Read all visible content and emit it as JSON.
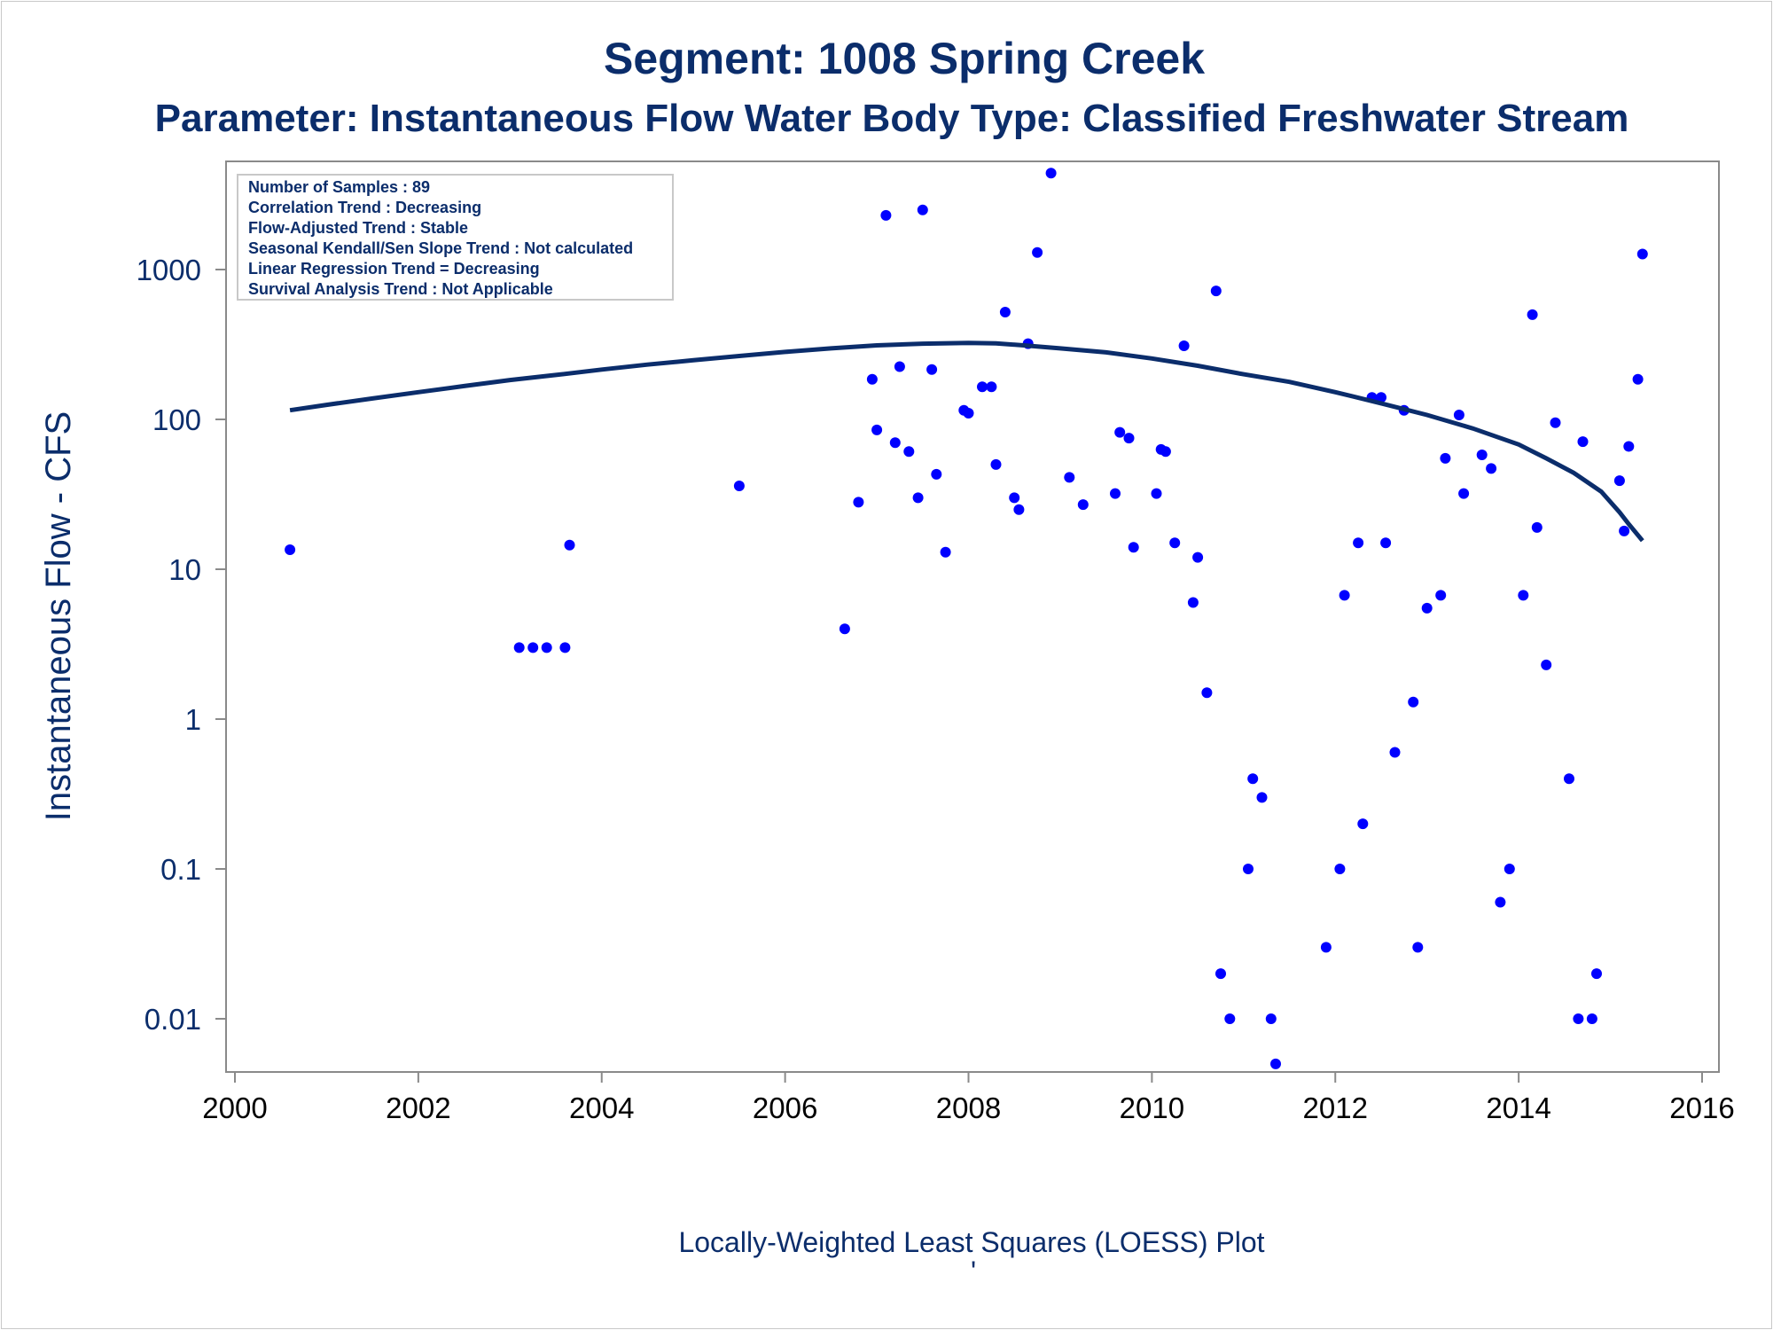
{
  "chart_data": {
    "type": "scatter",
    "title": "Segment: 1008  Spring Creek",
    "subtitle": "Parameter: Instantaneous Flow   Water Body Type: Classified Freshwater Stream",
    "xlabel": "",
    "ylabel": "Instantaneous Flow - CFS",
    "footer": "Locally-Weighted Least Squares (LOESS) Plot",
    "footer_mark": "'",
    "y_scale": "log",
    "xlim": [
      2000,
      2016
    ],
    "ylim": [
      0.005,
      5000
    ],
    "x_ticks": [
      "2000",
      "2002",
      "2004",
      "2006",
      "2008",
      "2010",
      "2012",
      "2014",
      "2016"
    ],
    "y_ticks": [
      "0.01",
      "0.1",
      "1",
      "10",
      "100",
      "1000"
    ],
    "grid": false,
    "annotation_box": [
      "Number of Samples : 89",
      "Correlation Trend : Decreasing",
      "Flow-Adjusted Trend : Stable",
      "Seasonal Kendall/Sen Slope Trend : Not calculated",
      "Linear Regression Trend = Decreasing",
      "Survival Analysis Trend : Not Applicable"
    ],
    "point_color": "#0000ff",
    "line_color": "#0b2d6b",
    "points": [
      [
        2000.6,
        13.5
      ],
      [
        2003.1,
        3
      ],
      [
        2003.25,
        3
      ],
      [
        2003.4,
        3
      ],
      [
        2003.6,
        3
      ],
      [
        2003.65,
        14.5
      ],
      [
        2005.5,
        36
      ],
      [
        2006.65,
        4
      ],
      [
        2006.8,
        28
      ],
      [
        2006.95,
        185
      ],
      [
        2007.0,
        85
      ],
      [
        2007.1,
        2300
      ],
      [
        2007.2,
        70
      ],
      [
        2007.25,
        225
      ],
      [
        2007.35,
        61
      ],
      [
        2007.45,
        30
      ],
      [
        2007.5,
        2500
      ],
      [
        2007.6,
        215
      ],
      [
        2007.65,
        43
      ],
      [
        2007.75,
        13
      ],
      [
        2007.95,
        115
      ],
      [
        2008.0,
        110
      ],
      [
        2008.15,
        165
      ],
      [
        2008.25,
        165
      ],
      [
        2008.3,
        50
      ],
      [
        2008.4,
        520
      ],
      [
        2008.5,
        30
      ],
      [
        2008.55,
        25
      ],
      [
        2008.65,
        320
      ],
      [
        2008.75,
        1300
      ],
      [
        2008.9,
        4400
      ],
      [
        2009.1,
        41
      ],
      [
        2009.25,
        27
      ],
      [
        2009.6,
        32
      ],
      [
        2009.65,
        82
      ],
      [
        2009.75,
        75
      ],
      [
        2009.8,
        14
      ],
      [
        2010.05,
        32
      ],
      [
        2010.1,
        63
      ],
      [
        2010.15,
        61
      ],
      [
        2010.25,
        15
      ],
      [
        2010.35,
        310
      ],
      [
        2010.45,
        6
      ],
      [
        2010.5,
        12
      ],
      [
        2010.6,
        1.5
      ],
      [
        2010.7,
        720
      ],
      [
        2010.75,
        0.02
      ],
      [
        2010.85,
        0.01
      ],
      [
        2011.05,
        0.1
      ],
      [
        2011.1,
        0.4
      ],
      [
        2011.2,
        0.3
      ],
      [
        2011.3,
        0.01
      ],
      [
        2011.35,
        0.005
      ],
      [
        2011.9,
        0.03
      ],
      [
        2012.05,
        0.1
      ],
      [
        2012.1,
        6.7
      ],
      [
        2012.25,
        15
      ],
      [
        2012.3,
        0.2
      ],
      [
        2012.4,
        140
      ],
      [
        2012.5,
        140
      ],
      [
        2012.55,
        15
      ],
      [
        2012.65,
        0.6
      ],
      [
        2012.75,
        115
      ],
      [
        2012.85,
        1.3
      ],
      [
        2012.9,
        0.03
      ],
      [
        2013.0,
        5.5
      ],
      [
        2013.15,
        6.7
      ],
      [
        2013.2,
        55
      ],
      [
        2013.35,
        107
      ],
      [
        2013.4,
        32
      ],
      [
        2013.6,
        58
      ],
      [
        2013.7,
        47
      ],
      [
        2013.8,
        0.06
      ],
      [
        2013.9,
        0.1
      ],
      [
        2014.05,
        6.7
      ],
      [
        2014.15,
        500
      ],
      [
        2014.2,
        19
      ],
      [
        2014.3,
        2.3
      ],
      [
        2014.4,
        95
      ],
      [
        2014.55,
        0.4
      ],
      [
        2014.65,
        0.01
      ],
      [
        2014.7,
        71
      ],
      [
        2014.8,
        0.01
      ],
      [
        2014.85,
        0.02
      ],
      [
        2015.1,
        39
      ],
      [
        2015.15,
        18
      ],
      [
        2015.2,
        66
      ],
      [
        2015.3,
        185
      ],
      [
        2015.35,
        1270
      ]
    ],
    "loess": [
      [
        2000.6,
        115
      ],
      [
        2001.0,
        125
      ],
      [
        2001.5,
        138
      ],
      [
        2002.0,
        152
      ],
      [
        2002.5,
        167
      ],
      [
        2003.0,
        183
      ],
      [
        2003.5,
        198
      ],
      [
        2004.0,
        215
      ],
      [
        2004.5,
        232
      ],
      [
        2005.0,
        248
      ],
      [
        2005.5,
        265
      ],
      [
        2006.0,
        282
      ],
      [
        2006.5,
        298
      ],
      [
        2007.0,
        312
      ],
      [
        2007.5,
        320
      ],
      [
        2008.0,
        324
      ],
      [
        2008.3,
        322
      ],
      [
        2008.6,
        312
      ],
      [
        2009.0,
        298
      ],
      [
        2009.5,
        280
      ],
      [
        2010.0,
        255
      ],
      [
        2010.5,
        228
      ],
      [
        2011.0,
        200
      ],
      [
        2011.5,
        178
      ],
      [
        2012.0,
        152
      ],
      [
        2012.5,
        128
      ],
      [
        2013.0,
        107
      ],
      [
        2013.5,
        87
      ],
      [
        2014.0,
        68
      ],
      [
        2014.3,
        55
      ],
      [
        2014.6,
        44
      ],
      [
        2014.9,
        33
      ],
      [
        2015.1,
        24
      ],
      [
        2015.2,
        20
      ],
      [
        2015.35,
        15.5
      ]
    ]
  }
}
